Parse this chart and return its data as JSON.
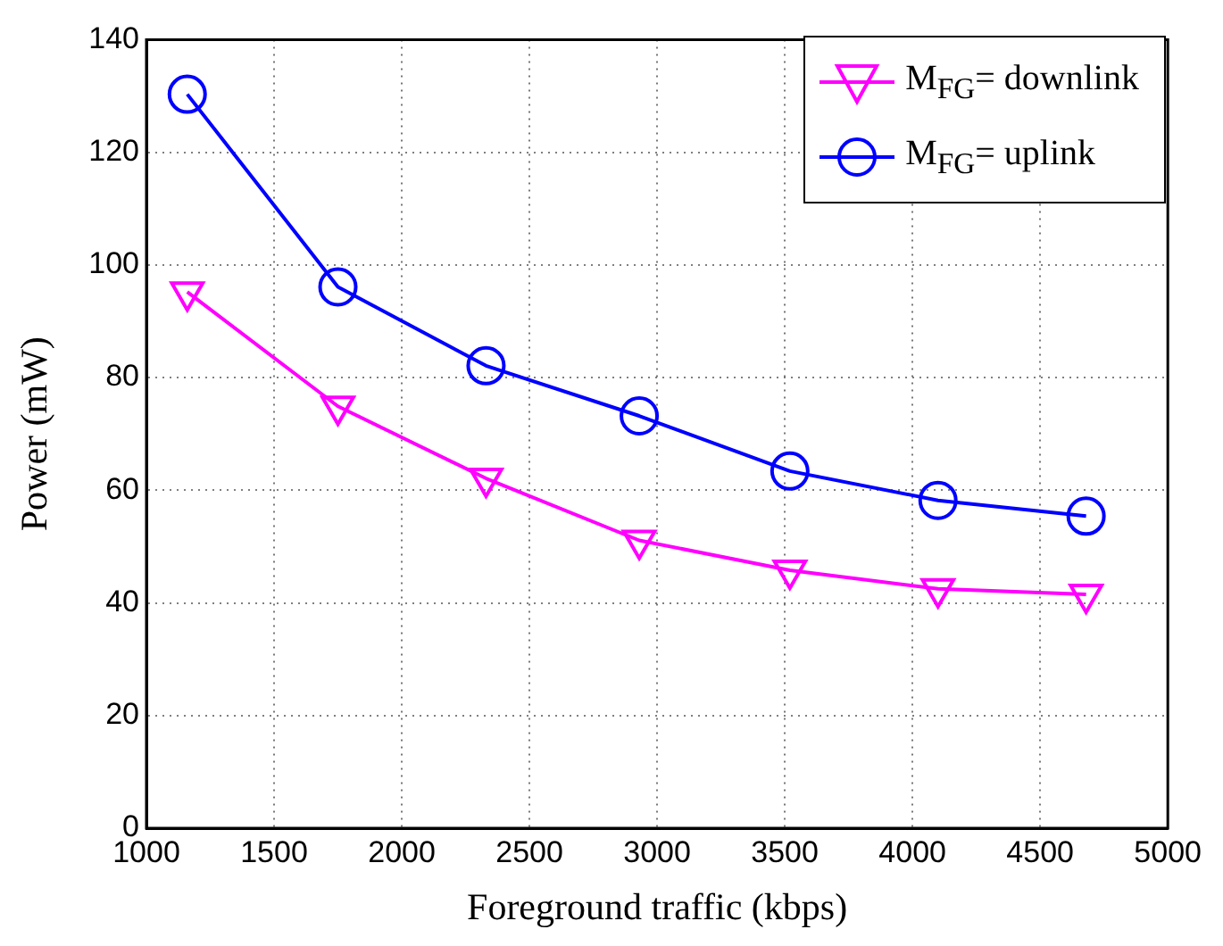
{
  "chart_data": {
    "type": "line",
    "xlabel": "Foreground traffic (kbps)",
    "ylabel": "Power (mW)",
    "xlim": [
      1000,
      5000
    ],
    "xticks": [
      1000,
      1500,
      2000,
      2500,
      3000,
      3500,
      4000,
      4500,
      5000
    ],
    "ylim": [
      0,
      140
    ],
    "yticks": [
      0,
      20,
      40,
      60,
      80,
      100,
      120,
      140
    ],
    "x": [
      1160,
      1750,
      2330,
      2930,
      3520,
      4100,
      4680
    ],
    "series": [
      {
        "name": "M$_{FG}$= downlink",
        "color": "#ff00ff",
        "marker": "triangle",
        "values": [
          95.2,
          74.9,
          62.1,
          51.1,
          45.8,
          42.5,
          41.5
        ]
      },
      {
        "name": "M$_{FG}$= uplink",
        "color": "#0000ff",
        "marker": "circle",
        "values": [
          130.3,
          96.1,
          82.1,
          73.2,
          63.4,
          58.2,
          55.4
        ]
      }
    ],
    "grid": true,
    "legend": "top right",
    "line_style": "solid"
  }
}
